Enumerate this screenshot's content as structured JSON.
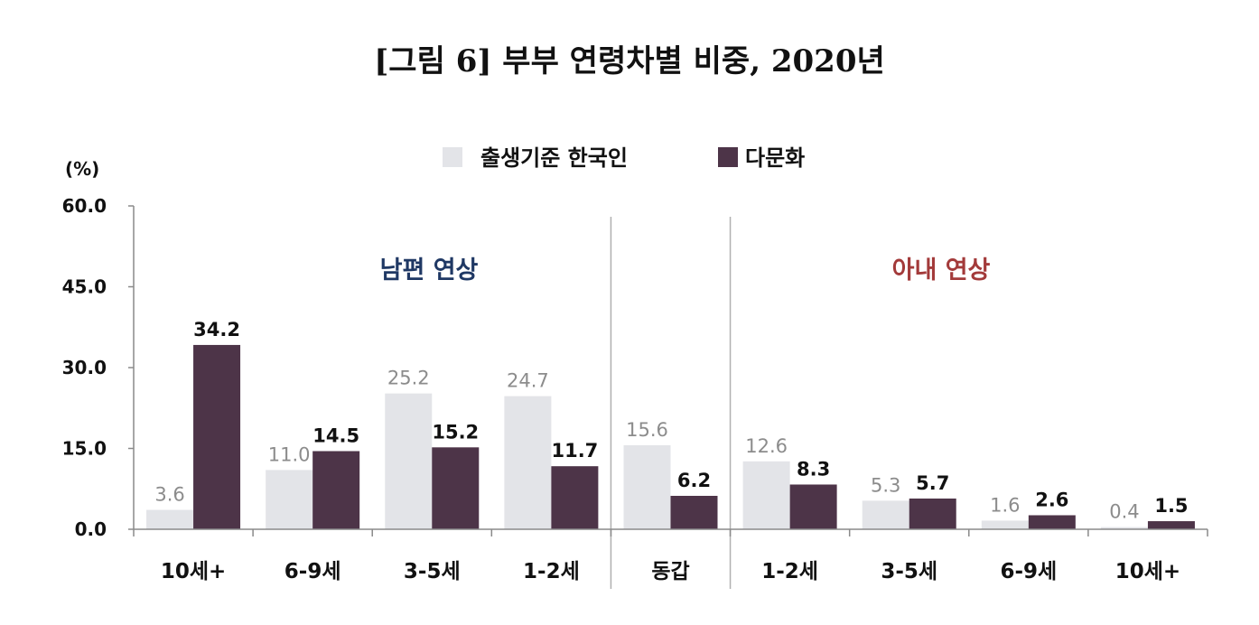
{
  "title": "[그림 6] 부부 연령차별 비중, 2020년",
  "chart_data": {
    "type": "bar",
    "title": "[그림 6] 부부 연령차별 비중, 2020년",
    "unit": "(%)",
    "categories": [
      "10세+",
      "6-9세",
      "3-5세",
      "1-2세",
      "동갑",
      "1-2세",
      "3-5세",
      "6-9세",
      "10세+"
    ],
    "series": [
      {
        "name": "출생기준 한국인",
        "values": [
          3.6,
          11.0,
          25.2,
          24.7,
          15.6,
          12.6,
          5.3,
          1.6,
          0.4
        ],
        "labels": [
          "3.6",
          "11.0",
          "25.2",
          "24.7",
          "15.6",
          "12.6",
          "5.3",
          "1.6",
          "0.4"
        ],
        "color": "#e3e4e8"
      },
      {
        "name": "다문화",
        "values": [
          34.2,
          14.5,
          15.2,
          11.7,
          6.2,
          8.3,
          5.7,
          2.6,
          1.5
        ],
        "labels": [
          "34.2",
          "14.5",
          "15.2",
          "11.7",
          "6.2",
          "8.3",
          "5.7",
          "2.6",
          "1.5"
        ],
        "color": "#4d3448"
      }
    ],
    "ylim": [
      0,
      60
    ],
    "yticks": [
      "0.0",
      "15.0",
      "30.0",
      "45.0",
      "60.0"
    ],
    "yticks_values": [
      0,
      15,
      30,
      45,
      60
    ],
    "group_labels": [
      {
        "text": "남편 연상",
        "color": "#1f3864"
      },
      {
        "text": "아내 연상",
        "color": "#a33a3a"
      }
    ],
    "legend_position": "top-center",
    "grid": false
  }
}
